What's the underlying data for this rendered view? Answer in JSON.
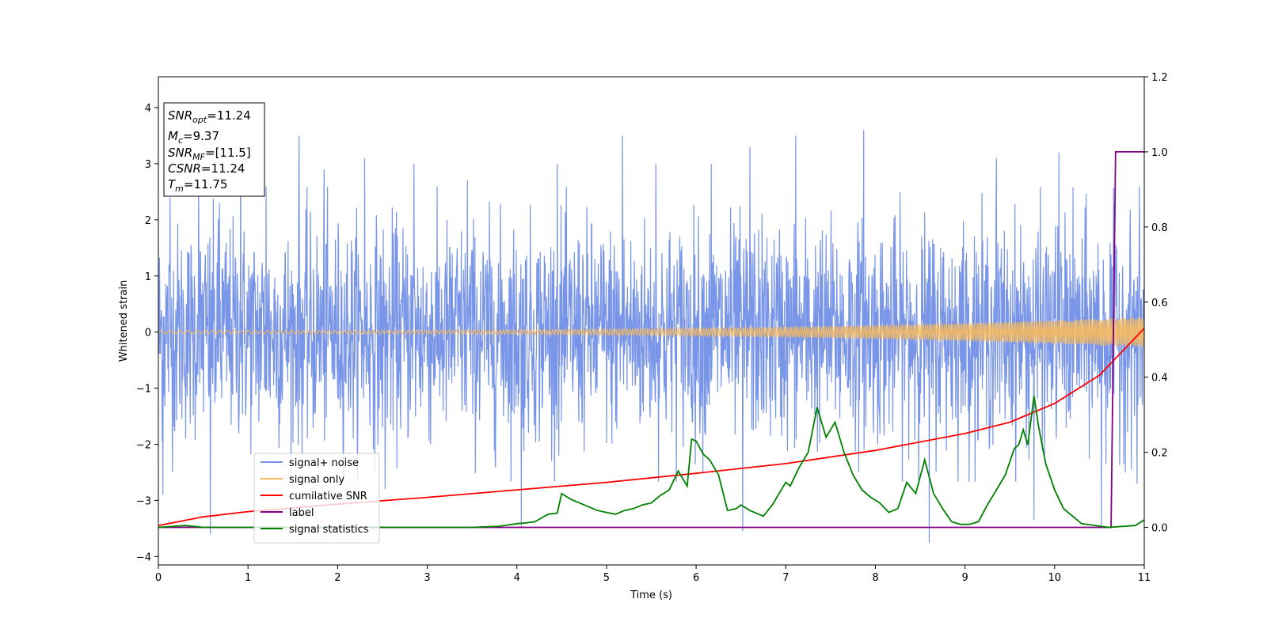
{
  "chart_data": {
    "type": "line",
    "xlabel": "Time (s)",
    "ylabel": "Whitened strain",
    "xlim": [
      0,
      11
    ],
    "ylim": [
      -4.15,
      4.55
    ],
    "y2lim": [
      -0.1,
      1.2
    ],
    "x_ticks": [
      "0",
      "1",
      "2",
      "3",
      "4",
      "5",
      "6",
      "7",
      "8",
      "9",
      "10",
      "11"
    ],
    "y_ticks": [
      "−4",
      "−3",
      "−2",
      "−1",
      "0",
      "1",
      "2",
      "3",
      "4"
    ],
    "y2_ticks": [
      "0.0",
      "0.2",
      "0.4",
      "0.6",
      "0.8",
      "1.0",
      "1.2"
    ],
    "grid": false,
    "legend_position": "lower-left",
    "info_box": {
      "snr_opt": {
        "base": "SNR",
        "sub": "opt",
        "value": "=11.24"
      },
      "mc": {
        "base": "M",
        "sub": "c",
        "value": "=9.37"
      },
      "snr_mf": {
        "base": "SNR",
        "sub": "MF",
        "value": "=[11.5]"
      },
      "csnr": {
        "base": "CSNR",
        "value": "=11.24"
      },
      "tm": {
        "base": "T",
        "sub": "m",
        "value": "=11.75"
      }
    },
    "series": [
      {
        "name": "signal+ noise",
        "axis": "left",
        "color": "#7895e8",
        "description_range": [
          -3.7,
          3.6
        ],
        "peaks": [
          [
            0.05,
            -2.9
          ],
          [
            0.13,
            2.4
          ],
          [
            0.45,
            2.6
          ],
          [
            0.58,
            -3.6
          ],
          [
            0.68,
            2.3
          ],
          [
            0.92,
            3.3
          ],
          [
            1.2,
            2.6
          ],
          [
            1.57,
            3.5
          ],
          [
            1.85,
            2.9
          ],
          [
            2.3,
            3.1
          ],
          [
            2.53,
            -2.8
          ],
          [
            2.85,
            3.0
          ],
          [
            3.45,
            2.7
          ],
          [
            4.05,
            -3.5
          ],
          [
            4.45,
            3.0
          ],
          [
            5.18,
            3.5
          ],
          [
            5.55,
            3.0
          ],
          [
            6.17,
            3.0
          ],
          [
            6.52,
            -3.55
          ],
          [
            6.6,
            3.3
          ],
          [
            7.11,
            3.5
          ],
          [
            7.87,
            3.6
          ],
          [
            8.6,
            -3.75
          ],
          [
            9.35,
            3.1
          ],
          [
            9.77,
            -3.35
          ],
          [
            10.05,
            3.2
          ],
          [
            10.52,
            -3.45
          ],
          [
            10.92,
            -2.7
          ]
        ]
      },
      {
        "name": "signal only",
        "axis": "left",
        "color": "#f5b95f",
        "amplitude_start": 0.03,
        "amplitude_end": 0.27
      },
      {
        "name": "cumilative SNR",
        "axis": "right",
        "color": "#ff0000",
        "x": [
          0,
          0.5,
          1,
          2,
          3,
          4,
          5,
          6,
          7,
          8,
          9,
          9.5,
          10,
          10.5,
          11
        ],
        "y": [
          0.005,
          0.028,
          0.042,
          0.062,
          0.08,
          0.1,
          0.12,
          0.144,
          0.17,
          0.205,
          0.25,
          0.28,
          0.33,
          0.405,
          0.53
        ]
      },
      {
        "name": "label",
        "axis": "right",
        "color": "#800080",
        "x": [
          0,
          10.63,
          10.68,
          11
        ],
        "y": [
          0,
          0,
          1.0,
          1.0
        ]
      },
      {
        "name": "signal statistics",
        "axis": "right",
        "color": "#008000",
        "x": [
          0,
          0.3,
          0.5,
          1,
          2,
          3,
          3.5,
          3.8,
          4.0,
          4.1,
          4.2,
          4.35,
          4.45,
          4.5,
          4.6,
          4.7,
          4.8,
          4.9,
          5.0,
          5.1,
          5.2,
          5.3,
          5.4,
          5.5,
          5.6,
          5.7,
          5.8,
          5.9,
          5.95,
          6.0,
          6.08,
          6.15,
          6.25,
          6.35,
          6.45,
          6.5,
          6.6,
          6.75,
          6.85,
          7.0,
          7.05,
          7.15,
          7.25,
          7.35,
          7.45,
          7.55,
          7.65,
          7.75,
          7.85,
          7.95,
          8.05,
          8.15,
          8.25,
          8.35,
          8.45,
          8.55,
          8.65,
          8.75,
          8.85,
          8.95,
          9.05,
          9.15,
          9.25,
          9.35,
          9.45,
          9.55,
          9.6,
          9.65,
          9.7,
          9.77,
          9.82,
          9.9,
          10.0,
          10.1,
          10.3,
          10.6,
          10.9,
          11.0
        ],
        "y": [
          0.0,
          0.005,
          0.0,
          0.0,
          0.0,
          0.0,
          0.0,
          0.003,
          0.01,
          0.012,
          0.015,
          0.035,
          0.038,
          0.09,
          0.075,
          0.065,
          0.055,
          0.045,
          0.04,
          0.035,
          0.045,
          0.05,
          0.06,
          0.065,
          0.085,
          0.1,
          0.15,
          0.11,
          0.235,
          0.23,
          0.195,
          0.18,
          0.14,
          0.045,
          0.05,
          0.06,
          0.045,
          0.03,
          0.06,
          0.12,
          0.11,
          0.16,
          0.2,
          0.32,
          0.24,
          0.28,
          0.2,
          0.14,
          0.1,
          0.08,
          0.065,
          0.04,
          0.05,
          0.12,
          0.09,
          0.18,
          0.09,
          0.05,
          0.015,
          0.008,
          0.008,
          0.015,
          0.06,
          0.1,
          0.14,
          0.21,
          0.22,
          0.26,
          0.22,
          0.35,
          0.27,
          0.17,
          0.1,
          0.05,
          0.01,
          0.0,
          0.005,
          0.02
        ]
      }
    ]
  }
}
